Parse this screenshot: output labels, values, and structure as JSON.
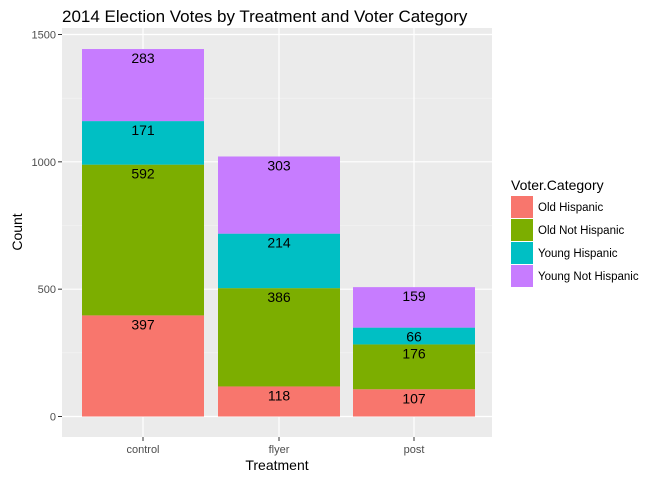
{
  "chart_data": {
    "type": "bar",
    "stacked": true,
    "title": "2014 Election Votes by Treatment and Voter Category",
    "xlabel": "Treatment",
    "ylabel": "Count",
    "categories": [
      "control",
      "flyer",
      "post"
    ],
    "ylim": [
      0,
      1500
    ],
    "yticks": [
      0,
      500,
      1000,
      1500
    ],
    "grid": true,
    "legend": {
      "title": "Voter.Category",
      "position": "right"
    },
    "series": [
      {
        "name": "Old Hispanic",
        "color": "#F8766D",
        "values": [
          397,
          118,
          107
        ]
      },
      {
        "name": "Old Not Hispanic",
        "color": "#7CAE00",
        "values": [
          592,
          386,
          176
        ]
      },
      {
        "name": "Young Hispanic",
        "color": "#00BFC4",
        "values": [
          171,
          214,
          66
        ]
      },
      {
        "name": "Young Not Hispanic",
        "color": "#C77CFF",
        "values": [
          283,
          303,
          159
        ]
      }
    ]
  }
}
